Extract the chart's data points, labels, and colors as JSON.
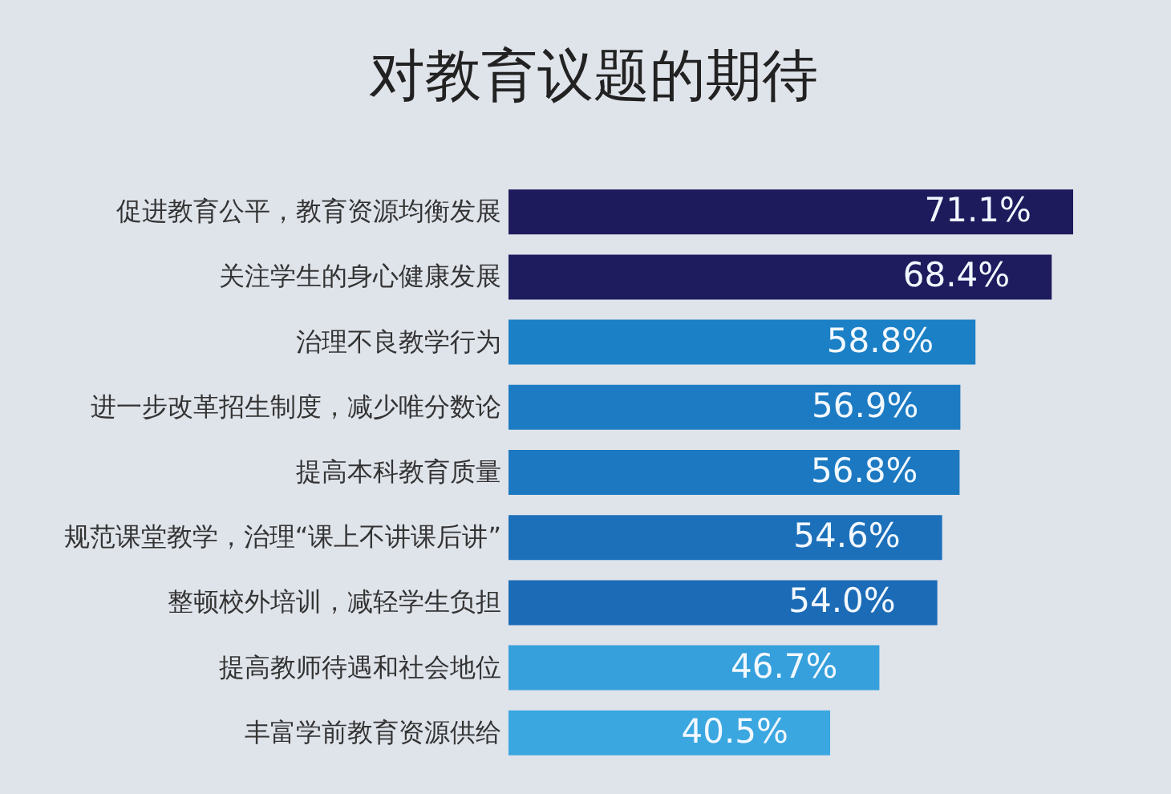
{
  "chart_data": {
    "type": "bar",
    "orientation": "horizontal",
    "title": "对教育议题的期待",
    "categories": [
      "促进教育公平，教育资源均衡发展",
      "关注学生的身心健康发展",
      "治理不良教学行为",
      "进一步改革招生制度，减少唯分数论",
      "提高本科教育质量",
      "规范课堂教学，治理“课上不讲课后讲”",
      "整顿校外培训，减轻学生负担",
      "提高教师待遇和社会地位",
      "丰富学前教育资源供给"
    ],
    "values": [
      71.1,
      68.4,
      58.8,
      56.9,
      56.8,
      54.6,
      54.0,
      46.7,
      40.5
    ],
    "colors": [
      "#1d1b5c",
      "#1e1c5e",
      "#1b80c6",
      "#1c7bc3",
      "#1c79c1",
      "#1c70ba",
      "#1c6bb6",
      "#35a0dc",
      "#3aa7e0"
    ],
    "value_labels": [
      "71.1%",
      "68.4%",
      "58.8%",
      "56.9%",
      "56.8%",
      "54.6%",
      "54.0%",
      "46.7%",
      "40.5%"
    ],
    "tick_labels": "y"
  }
}
